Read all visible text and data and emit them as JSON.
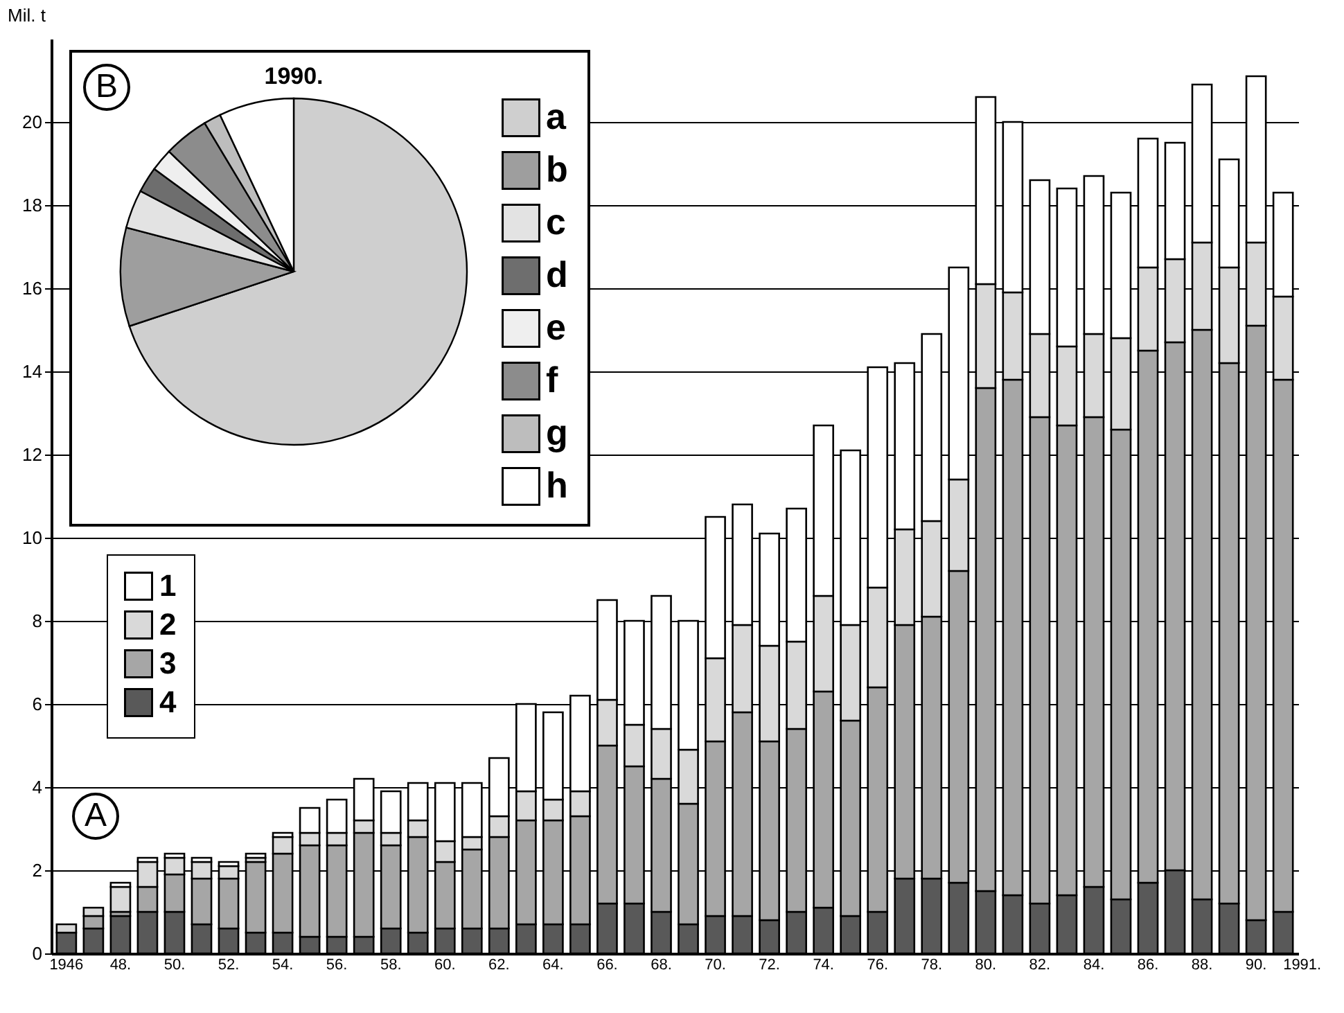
{
  "chart_data": [
    {
      "type": "bar",
      "ylabel": "Mil. t",
      "stacked": true,
      "grid": "y",
      "legend": "left",
      "ylim": [
        0,
        22
      ],
      "yticks": [
        0,
        2,
        4,
        6,
        8,
        10,
        12,
        14,
        16,
        18,
        20
      ],
      "annotations": [
        "A"
      ],
      "categories": [
        "1946",
        null,
        "48.",
        null,
        "50.",
        null,
        "52.",
        null,
        "54.",
        null,
        "56.",
        null,
        "58.",
        null,
        "60.",
        null,
        "62.",
        null,
        "64.",
        null,
        "66.",
        null,
        "68.",
        null,
        "70.",
        null,
        "72.",
        null,
        "74.",
        null,
        "76.",
        null,
        "78.",
        null,
        "80.",
        null,
        "82.",
        null,
        "84.",
        null,
        "86.",
        null,
        "88.",
        null,
        "90.",
        "1991."
      ],
      "series": [
        {
          "name": "4",
          "color": "#595959",
          "values": [
            0.5,
            0.6,
            0.9,
            1.0,
            1.0,
            0.7,
            0.6,
            0.5,
            0.5,
            0.4,
            0.4,
            0.4,
            0.6,
            0.5,
            0.6,
            0.6,
            0.6,
            0.7,
            0.7,
            0.7,
            1.2,
            1.2,
            1.0,
            0.7,
            0.9,
            0.9,
            0.8,
            1.0,
            1.1,
            0.9,
            1.0,
            1.8,
            1.8,
            1.7,
            1.5,
            1.4,
            1.2,
            1.4,
            1.6,
            1.3,
            1.7,
            2.0,
            1.3,
            1.2,
            0.8,
            1.0
          ]
        },
        {
          "name": "3",
          "color": "#a6a6a6",
          "values": [
            null,
            0.3,
            0.1,
            0.6,
            0.9,
            1.1,
            1.2,
            1.7,
            1.9,
            2.2,
            2.2,
            2.5,
            2.0,
            2.3,
            1.6,
            1.9,
            2.2,
            2.5,
            2.5,
            2.6,
            3.8,
            3.3,
            3.2,
            2.9,
            4.2,
            4.9,
            4.3,
            4.4,
            5.2,
            4.7,
            5.4,
            6.1,
            6.3,
            7.5,
            12.1,
            12.4,
            11.7,
            11.3,
            11.3,
            11.3,
            12.8,
            12.7,
            13.7,
            13.0,
            14.3,
            12.8
          ]
        },
        {
          "name": "2",
          "color": "#d9d9d9",
          "values": [
            0.2,
            0.2,
            0.6,
            0.6,
            0.4,
            0.4,
            0.3,
            0.1,
            0.4,
            0.3,
            0.3,
            0.3,
            0.3,
            0.4,
            0.5,
            0.3,
            0.5,
            0.7,
            0.5,
            0.6,
            1.1,
            1.0,
            1.2,
            1.3,
            2.0,
            2.1,
            2.3,
            2.1,
            2.3,
            2.3,
            2.4,
            2.3,
            2.3,
            2.2,
            2.5,
            2.1,
            2.0,
            1.9,
            2.0,
            2.2,
            2.0,
            2.0,
            2.1,
            2.3,
            2.0,
            2.0
          ]
        },
        {
          "name": "1",
          "color": "#ffffff",
          "values": [
            null,
            null,
            0.1,
            0.1,
            0.1,
            0.1,
            0.1,
            0.1,
            0.1,
            0.6,
            0.8,
            1.0,
            1.0,
            0.9,
            1.4,
            1.3,
            1.4,
            2.1,
            2.1,
            2.3,
            2.4,
            2.5,
            3.2,
            3.1,
            3.4,
            2.9,
            2.7,
            3.2,
            4.1,
            4.2,
            5.3,
            4.0,
            4.5,
            5.1,
            4.5,
            4.1,
            3.7,
            3.8,
            3.8,
            3.5,
            3.1,
            2.8,
            3.8,
            2.6,
            4.0,
            2.5
          ]
        }
      ]
    },
    {
      "type": "pie",
      "title": "1990.",
      "legend": "right",
      "annotations": [
        "B"
      ],
      "categories": [
        "a",
        "b",
        "c",
        "d",
        "e",
        "f",
        "g",
        "h"
      ],
      "values": [
        69.9,
        9.2,
        3.6,
        2.4,
        2.1,
        4.2,
        1.6,
        7.0
      ],
      "colors": [
        "#cfcfcf",
        "#9e9e9e",
        "#e3e3e3",
        "#6e6e6e",
        "#efefef",
        "#8c8c8c",
        "#bdbdbd",
        "#ffffff"
      ]
    }
  ]
}
